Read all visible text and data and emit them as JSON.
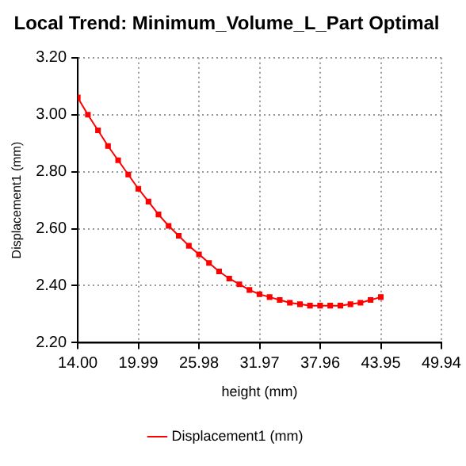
{
  "chart_data": {
    "type": "line",
    "title": "Local Trend: Minimum_Volume_L_Part Optimal",
    "xlabel": "height (mm)",
    "ylabel": "Displacement1 (mm)",
    "x": [
      14.0,
      15.0,
      16.0,
      16.99,
      17.99,
      18.99,
      19.99,
      20.99,
      21.98,
      22.98,
      23.98,
      24.98,
      25.98,
      26.97,
      27.97,
      28.97,
      29.97,
      30.97,
      31.96,
      32.96,
      33.96,
      34.96,
      35.96,
      36.95,
      37.95,
      38.95,
      39.95,
      40.95,
      41.94,
      42.94,
      43.95
    ],
    "series": [
      {
        "name": "Displacement1 (mm)",
        "color": "#ff0000",
        "values": [
          3.06,
          3.0,
          2.945,
          2.89,
          2.84,
          2.79,
          2.74,
          2.695,
          2.65,
          2.61,
          2.575,
          2.54,
          2.51,
          2.48,
          2.45,
          2.425,
          2.405,
          2.385,
          2.37,
          2.36,
          2.35,
          2.34,
          2.335,
          2.33,
          2.33,
          2.33,
          2.33,
          2.335,
          2.34,
          2.35,
          2.36
        ]
      }
    ],
    "xlim": [
      14.0,
      49.94
    ],
    "xticks": [
      {
        "value": 14.0,
        "label": "14.00"
      },
      {
        "value": 19.99,
        "label": "19.99"
      },
      {
        "value": 25.98,
        "label": "25.98"
      },
      {
        "value": 31.97,
        "label": "31.97"
      },
      {
        "value": 37.96,
        "label": "37.96"
      },
      {
        "value": 43.95,
        "label": "43.95"
      },
      {
        "value": 49.94,
        "label": "49.94"
      }
    ],
    "ylim": [
      2.2,
      3.2
    ],
    "yticks": [
      {
        "value": 2.2,
        "label": "2.20"
      },
      {
        "value": 2.4,
        "label": "2.40"
      },
      {
        "value": 2.6,
        "label": "2.60"
      },
      {
        "value": 2.8,
        "label": "2.80"
      },
      {
        "value": 3.0,
        "label": "3.00"
      },
      {
        "value": 3.2,
        "label": "3.20"
      }
    ],
    "grid": true,
    "legend": "bottom",
    "marker": "square",
    "line_style": "solid"
  }
}
